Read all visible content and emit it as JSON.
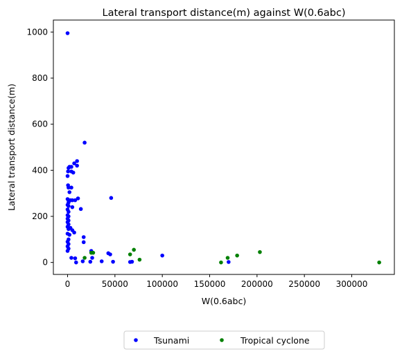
{
  "chart_data": {
    "type": "scatter",
    "title": "Lateral transport distance(m) against W(0.6abc)",
    "xlabel": "W(0.6abc)",
    "ylabel": "Lateral transport distance(m)",
    "xlim": [
      -15000,
      345000
    ],
    "ylim": [
      -52,
      1052
    ],
    "xticks": [
      0,
      50000,
      100000,
      150000,
      200000,
      250000,
      300000
    ],
    "xtick_labels": [
      "0",
      "50000",
      "100000",
      "150000",
      "200000",
      "250000",
      "300000"
    ],
    "yticks": [
      0,
      200,
      400,
      600,
      800,
      1000
    ],
    "ytick_labels": [
      "0",
      "200",
      "400",
      "600",
      "800",
      "1000"
    ],
    "grid": false,
    "legend": {
      "placement": "bottom-center, outside plot"
    },
    "series": [
      {
        "name": "Tsunami",
        "color": "#0000ff",
        "points": [
          [
            0,
            995
          ],
          [
            18000,
            520
          ],
          [
            10000,
            440
          ],
          [
            7000,
            430
          ],
          [
            10000,
            420
          ],
          [
            2000,
            415
          ],
          [
            4000,
            415
          ],
          [
            1000,
            410
          ],
          [
            500,
            395
          ],
          [
            4000,
            395
          ],
          [
            6000,
            390
          ],
          [
            0,
            375
          ],
          [
            500,
            335
          ],
          [
            1000,
            325
          ],
          [
            4000,
            325
          ],
          [
            2000,
            305
          ],
          [
            46000,
            280
          ],
          [
            0,
            275
          ],
          [
            1000,
            270
          ],
          [
            3000,
            270
          ],
          [
            5000,
            270
          ],
          [
            8000,
            270
          ],
          [
            11000,
            278
          ],
          [
            1000,
            260
          ],
          [
            0,
            250
          ],
          [
            1000,
            245
          ],
          [
            5000,
            240
          ],
          [
            0,
            230
          ],
          [
            14000,
            232
          ],
          [
            1000,
            220
          ],
          [
            0,
            205
          ],
          [
            1000,
            200
          ],
          [
            0,
            190
          ],
          [
            1000,
            182
          ],
          [
            0,
            175
          ],
          [
            1000,
            165
          ],
          [
            0,
            155
          ],
          [
            3000,
            150
          ],
          [
            1000,
            145
          ],
          [
            5000,
            140
          ],
          [
            7000,
            130
          ],
          [
            0,
            125
          ],
          [
            2000,
            120
          ],
          [
            17000,
            110
          ],
          [
            1000,
            100
          ],
          [
            0,
            90
          ],
          [
            17000,
            88
          ],
          [
            1000,
            80
          ],
          [
            0,
            70
          ],
          [
            1000,
            60
          ],
          [
            0,
            50
          ],
          [
            25000,
            50
          ],
          [
            43000,
            40
          ],
          [
            45000,
            35
          ],
          [
            100000,
            30
          ],
          [
            4000,
            20
          ],
          [
            8000,
            18
          ],
          [
            26000,
            20
          ],
          [
            36000,
            5
          ],
          [
            16000,
            5
          ],
          [
            24000,
            3
          ],
          [
            48000,
            3
          ],
          [
            9000,
            0
          ],
          [
            66000,
            2
          ],
          [
            68000,
            3
          ],
          [
            170000,
            2
          ]
        ]
      },
      {
        "name": "Tropical cyclone",
        "color": "#008000",
        "points": [
          [
            18000,
            20
          ],
          [
            25000,
            42
          ],
          [
            27000,
            42
          ],
          [
            66000,
            35
          ],
          [
            70000,
            55
          ],
          [
            76000,
            12
          ],
          [
            162000,
            0
          ],
          [
            169000,
            20
          ],
          [
            179000,
            30
          ],
          [
            203000,
            45
          ],
          [
            329000,
            0
          ]
        ]
      }
    ]
  }
}
